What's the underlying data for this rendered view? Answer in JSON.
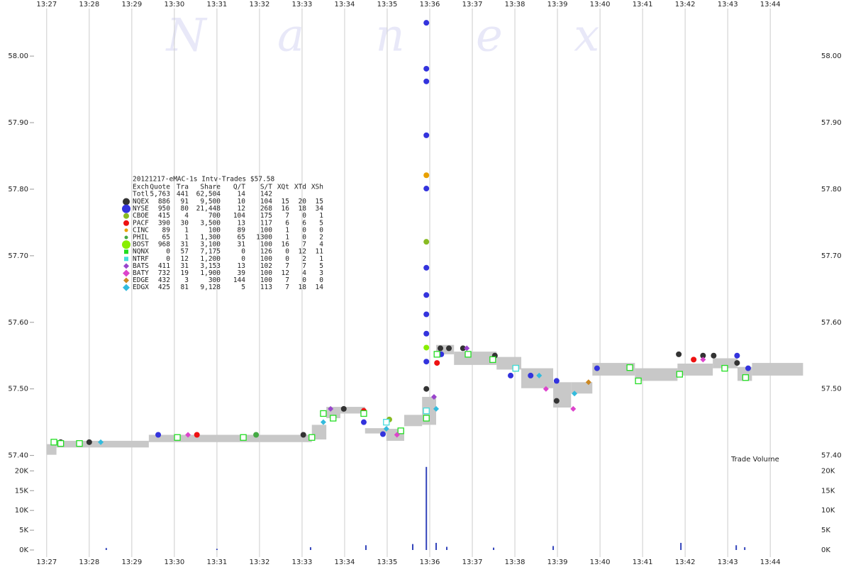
{
  "chart_data": [
    {
      "type": "scatter",
      "title": "20121217-eMAC-1s Intv-Trades $57.58",
      "watermark": "N a n e x",
      "xlim": [
        806.57,
        825.23
      ],
      "ylim": [
        57.39,
        58.08
      ],
      "xticks": [
        {
          "value": 807,
          "label": "13:27"
        },
        {
          "value": 808,
          "label": "13:28"
        },
        {
          "value": 809,
          "label": "13:29"
        },
        {
          "value": 810,
          "label": "13:30"
        },
        {
          "value": 811,
          "label": "13:31"
        },
        {
          "value": 812,
          "label": "13:32"
        },
        {
          "value": 813,
          "label": "13:33"
        },
        {
          "value": 814,
          "label": "13:34"
        },
        {
          "value": 815,
          "label": "13:35"
        },
        {
          "value": 816,
          "label": "13:36"
        },
        {
          "value": 817,
          "label": "13:37"
        },
        {
          "value": 818,
          "label": "13:38"
        },
        {
          "value": 819,
          "label": "13:39"
        },
        {
          "value": 820,
          "label": "13:40"
        },
        {
          "value": 821,
          "label": "13:41"
        },
        {
          "value": 822,
          "label": "13:42"
        },
        {
          "value": 823,
          "label": "13:43"
        },
        {
          "value": 824,
          "label": "13:44"
        }
      ],
      "yticks": [
        {
          "value": 57.4,
          "label": "57.40"
        },
        {
          "value": 57.5,
          "label": "57.50"
        },
        {
          "value": 57.6,
          "label": "57.60"
        },
        {
          "value": 57.7,
          "label": "57.70"
        },
        {
          "value": 57.8,
          "label": "57.80"
        },
        {
          "value": 57.9,
          "label": "57.90"
        },
        {
          "value": 58.0,
          "label": "58.00"
        }
      ],
      "grid": true,
      "nbbo": {
        "color": "#c8c8c8",
        "edges": [
          807.0,
          807.23,
          809.4,
          813.23,
          813.57,
          813.9,
          814.48,
          814.98,
          815.4,
          815.82,
          816.15,
          816.57,
          817.57,
          818.15,
          818.9,
          819.32,
          819.82,
          820.82,
          821.82,
          822.65,
          823.23,
          823.57,
          824.77
        ],
        "low": [
          57.401,
          57.412,
          57.42,
          57.424,
          57.456,
          57.463,
          57.433,
          57.422,
          57.444,
          57.446,
          57.552,
          57.536,
          57.529,
          57.501,
          57.472,
          57.493,
          57.52,
          57.512,
          57.52,
          57.531,
          57.512,
          57.52
        ],
        "high": [
          57.417,
          57.422,
          57.431,
          57.446,
          57.473,
          57.473,
          57.441,
          57.44,
          57.461,
          57.488,
          57.566,
          57.556,
          57.548,
          57.531,
          57.51,
          57.51,
          57.539,
          57.531,
          57.538,
          57.546,
          57.533,
          57.539
        ]
      },
      "legend": {
        "columns": [
          "Exch",
          "Quote",
          "Tra",
          "Share",
          "Q/T",
          "S/T",
          "XQt",
          "XTd",
          "XSh"
        ],
        "total": [
          "Totl",
          "5,763",
          "441",
          "62,504",
          "14",
          "142"
        ]
      },
      "series": [
        {
          "name": "NQEX",
          "color": "#333333",
          "marker": "circle",
          "size": 5,
          "stats": [
            "886",
            "91",
            "9,500",
            "10",
            "104",
            "15",
            "20",
            "15"
          ],
          "x": [
            807.33,
            808.0,
            813.03,
            813.98,
            815.92,
            816.25,
            816.45,
            816.78,
            817.53,
            818.98,
            821.85,
            822.42,
            822.67,
            823.22
          ],
          "values": [
            57.42,
            57.42,
            57.431,
            57.47,
            57.5,
            57.561,
            57.561,
            57.561,
            57.55,
            57.482,
            57.552,
            57.55,
            57.55,
            57.539
          ]
        },
        {
          "name": "NYSE",
          "color": "#3333dd",
          "marker": "circle",
          "size": 6,
          "stats": [
            "950",
            "80",
            "21,448",
            "12",
            "268",
            "16",
            "18",
            "34"
          ],
          "x": [
            815.92,
            815.92,
            815.92,
            815.92,
            815.92,
            815.92,
            815.92,
            815.92,
            815.92,
            815.92,
            816.27,
            809.62,
            814.45,
            814.9,
            817.9,
            818.37,
            818.98,
            819.93,
            823.22,
            823.48
          ],
          "values": [
            58.05,
            57.981,
            57.962,
            57.881,
            57.801,
            57.682,
            57.641,
            57.612,
            57.583,
            57.541,
            57.552,
            57.431,
            57.45,
            57.432,
            57.52,
            57.52,
            57.512,
            57.531,
            57.55,
            57.531
          ]
        },
        {
          "name": "CBOE",
          "color": "#88bb22",
          "marker": "circle",
          "size": 4,
          "stats": [
            "415",
            "4",
            "700",
            "104",
            "175",
            "7",
            "0",
            "1"
          ],
          "x": [
            815.92,
            815.05,
            816.9
          ],
          "values": [
            57.721,
            57.454,
            57.552
          ]
        },
        {
          "name": "PACF",
          "color": "#ee1111",
          "marker": "circle",
          "size": 4,
          "stats": [
            "390",
            "30",
            "3,500",
            "13",
            "117",
            "6",
            "6",
            "5"
          ],
          "x": [
            810.53,
            816.17,
            822.2,
            814.45
          ],
          "values": [
            57.431,
            57.539,
            57.544,
            57.467
          ]
        },
        {
          "name": "CINC",
          "color": "#e8a000",
          "marker": "circle",
          "size": 2.5,
          "stats": [
            "89",
            "1",
            "100",
            "89",
            "100",
            "1",
            "0",
            "0"
          ],
          "x": [
            815.92
          ],
          "values": [
            57.821
          ]
        },
        {
          "name": "PHIL",
          "color": "#44aa44",
          "marker": "circle",
          "size": 2.5,
          "stats": [
            "65",
            "1",
            "1,300",
            "65",
            "1300",
            "1",
            "0",
            "2"
          ],
          "x": [
            811.92
          ],
          "values": [
            57.431
          ]
        },
        {
          "name": "BOST",
          "color": "#88ee00",
          "marker": "circle",
          "size": 6,
          "stats": [
            "968",
            "31",
            "3,100",
            "31",
            "100",
            "16",
            "7",
            "4"
          ],
          "x": [
            815.92
          ],
          "values": [
            57.562
          ]
        },
        {
          "name": "NQNX",
          "color": "#22dd22",
          "marker": "square",
          "size": 3,
          "hollow": true,
          "stats": [
            "0",
            "57",
            "7,175",
            "0",
            "126",
            "0",
            "12",
            "11"
          ],
          "x": [
            807.17,
            807.33,
            807.77,
            810.07,
            811.62,
            813.23,
            813.5,
            813.73,
            814.45,
            815.32,
            815.92,
            816.17,
            816.9,
            817.48,
            818.02,
            820.7,
            820.9,
            821.87,
            822.93,
            823.42
          ],
          "values": [
            57.42,
            57.418,
            57.418,
            57.427,
            57.427,
            57.427,
            57.463,
            57.456,
            57.463,
            57.437,
            57.456,
            57.552,
            57.552,
            57.544,
            57.531,
            57.532,
            57.512,
            57.522,
            57.531,
            57.517
          ]
        },
        {
          "name": "NTRF",
          "color": "#44dddd",
          "marker": "square",
          "size": 3,
          "hollow": true,
          "stats": [
            "0",
            "12",
            "1,200",
            "0",
            "100",
            "0",
            "2",
            "1"
          ],
          "x": [
            814.98,
            815.92,
            818.02
          ],
          "values": [
            57.45,
            57.467,
            57.531
          ]
        },
        {
          "name": "BATS",
          "color": "#9944cc",
          "marker": "diamond",
          "size": 4,
          "stats": [
            "411",
            "31",
            "3,153",
            "13",
            "102",
            "7",
            "7",
            "5"
          ],
          "x": [
            813.67,
            816.1,
            816.87
          ],
          "values": [
            57.47,
            57.488,
            57.561
          ]
        },
        {
          "name": "BATY",
          "color": "#dd44cc",
          "marker": "diamond",
          "size": 5,
          "stats": [
            "732",
            "19",
            "1,900",
            "39",
            "100",
            "12",
            "4",
            "3"
          ],
          "x": [
            810.32,
            815.23,
            818.73,
            819.37,
            822.42
          ],
          "values": [
            57.431,
            57.431,
            57.5,
            57.47,
            57.544
          ]
        },
        {
          "name": "EDGE",
          "color": "#cc8822",
          "marker": "diamond",
          "size": 4,
          "stats": [
            "432",
            "3",
            "300",
            "144",
            "100",
            "7",
            "0",
            "0"
          ],
          "x": [
            819.73
          ],
          "values": [
            57.51
          ]
        },
        {
          "name": "EDGX",
          "color": "#33bbdd",
          "marker": "diamond",
          "size": 5,
          "stats": [
            "425",
            "81",
            "9,128",
            "5",
            "113",
            "7",
            "18",
            "14"
          ],
          "x": [
            808.27,
            813.5,
            814.98,
            816.15,
            818.57,
            819.4
          ],
          "values": [
            57.42,
            57.45,
            57.44,
            57.47,
            57.52,
            57.493
          ]
        }
      ]
    },
    {
      "type": "bar",
      "title": "Trade Volume",
      "color": "#3344bb",
      "xlim": [
        806.57,
        825.23
      ],
      "ylim": [
        0,
        21500
      ],
      "yticks": [
        {
          "value": 0,
          "label": "0K"
        },
        {
          "value": 5000,
          "label": "5K"
        },
        {
          "value": 10000,
          "label": "10K"
        },
        {
          "value": 15000,
          "label": "15K"
        },
        {
          "value": 20000,
          "label": "20K"
        }
      ],
      "x": [
        808.4,
        811.0,
        813.2,
        814.5,
        815.6,
        815.92,
        816.15,
        816.4,
        817.5,
        818.9,
        821.9,
        823.2,
        823.4
      ],
      "values": [
        500,
        300,
        700,
        1200,
        1500,
        21000,
        1800,
        800,
        600,
        1000,
        1800,
        1200,
        700
      ]
    }
  ]
}
